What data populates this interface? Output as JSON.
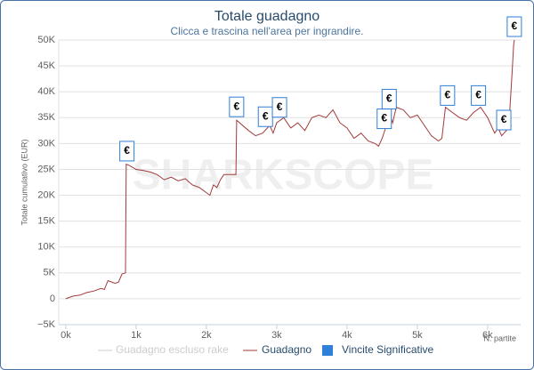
{
  "chart_data": {
    "type": "line",
    "title": "Totale guadagno",
    "subtitle": "Clicca e trascina nell'area per ingrandire.",
    "y_label": "Totale cumulativo (EUR)",
    "x_label": "N. partite",
    "watermark": "SHARKSCOPE",
    "xlim": [
      -100,
      6470
    ],
    "ylim": [
      -5000,
      50000
    ],
    "xticks": [
      {
        "value": 0,
        "label": "0k"
      },
      {
        "value": 1000,
        "label": "1k"
      },
      {
        "value": 2000,
        "label": "2k"
      },
      {
        "value": 3000,
        "label": "3k"
      },
      {
        "value": 4000,
        "label": "4k"
      },
      {
        "value": 5000,
        "label": "5k"
      },
      {
        "value": 6000,
        "label": "6k"
      }
    ],
    "yticks": [
      {
        "value": -5000,
        "label": "−5K"
      },
      {
        "value": 0,
        "label": "0"
      },
      {
        "value": 5000,
        "label": "5K"
      },
      {
        "value": 10000,
        "label": "10K"
      },
      {
        "value": 15000,
        "label": "15K"
      },
      {
        "value": 20000,
        "label": "20K"
      },
      {
        "value": 25000,
        "label": "25K"
      },
      {
        "value": 30000,
        "label": "30K"
      },
      {
        "value": 35000,
        "label": "35K"
      },
      {
        "value": 40000,
        "label": "40K"
      },
      {
        "value": 45000,
        "label": "45K"
      },
      {
        "value": 50000,
        "label": "50K"
      }
    ],
    "grid": true,
    "x": [
      0,
      100,
      200,
      300,
      400,
      500,
      550,
      600,
      700,
      750,
      800,
      850,
      860,
      900,
      1000,
      1100,
      1200,
      1300,
      1400,
      1500,
      1600,
      1700,
      1800,
      1900,
      2000,
      2050,
      2100,
      2150,
      2200,
      2250,
      2420,
      2430,
      2600,
      2700,
      2800,
      2900,
      2950,
      3000,
      3100,
      3200,
      3300,
      3400,
      3500,
      3600,
      3700,
      3800,
      3900,
      4000,
      4100,
      4200,
      4300,
      4400,
      4450,
      4500,
      4550,
      4600,
      4650,
      4700,
      4800,
      4900,
      5000,
      5100,
      5200,
      5300,
      5350,
      5400,
      5500,
      5600,
      5700,
      5800,
      5900,
      6000,
      6100,
      6150,
      6200,
      6300,
      6350,
      6370,
      6380
    ],
    "series": [
      {
        "name": "Guadagno escluso rake",
        "color": "#cccccc",
        "visible": false
      },
      {
        "name": "Guadagno",
        "color": "#a23b3b",
        "visible": true,
        "values": [
          0,
          500,
          700,
          1200,
          1500,
          2000,
          1800,
          3500,
          3000,
          3200,
          4800,
          5000,
          26000,
          25800,
          25000,
          24800,
          24500,
          24000,
          23000,
          23500,
          22800,
          23200,
          22000,
          21500,
          20500,
          20000,
          22000,
          21500,
          23000,
          24000,
          24000,
          34500,
          32500,
          31500,
          32000,
          33500,
          32000,
          34000,
          35000,
          33000,
          34000,
          32500,
          35000,
          35500,
          35000,
          36500,
          34000,
          33000,
          31000,
          32000,
          30500,
          30000,
          29500,
          31000,
          33000,
          36000,
          34000,
          37000,
          36500,
          35000,
          35500,
          33500,
          31500,
          30500,
          31000,
          37000,
          36000,
          35000,
          34500,
          36000,
          37000,
          35000,
          32000,
          33000,
          31500,
          33000,
          44000,
          49000,
          50000
        ]
      }
    ],
    "flags": {
      "name": "Vincite Significative",
      "color": "#2f7ed8",
      "title": "€",
      "x": [
        870,
        2430,
        2840,
        3040,
        4530,
        4600,
        5430,
        5870,
        6230,
        6380
      ]
    }
  }
}
